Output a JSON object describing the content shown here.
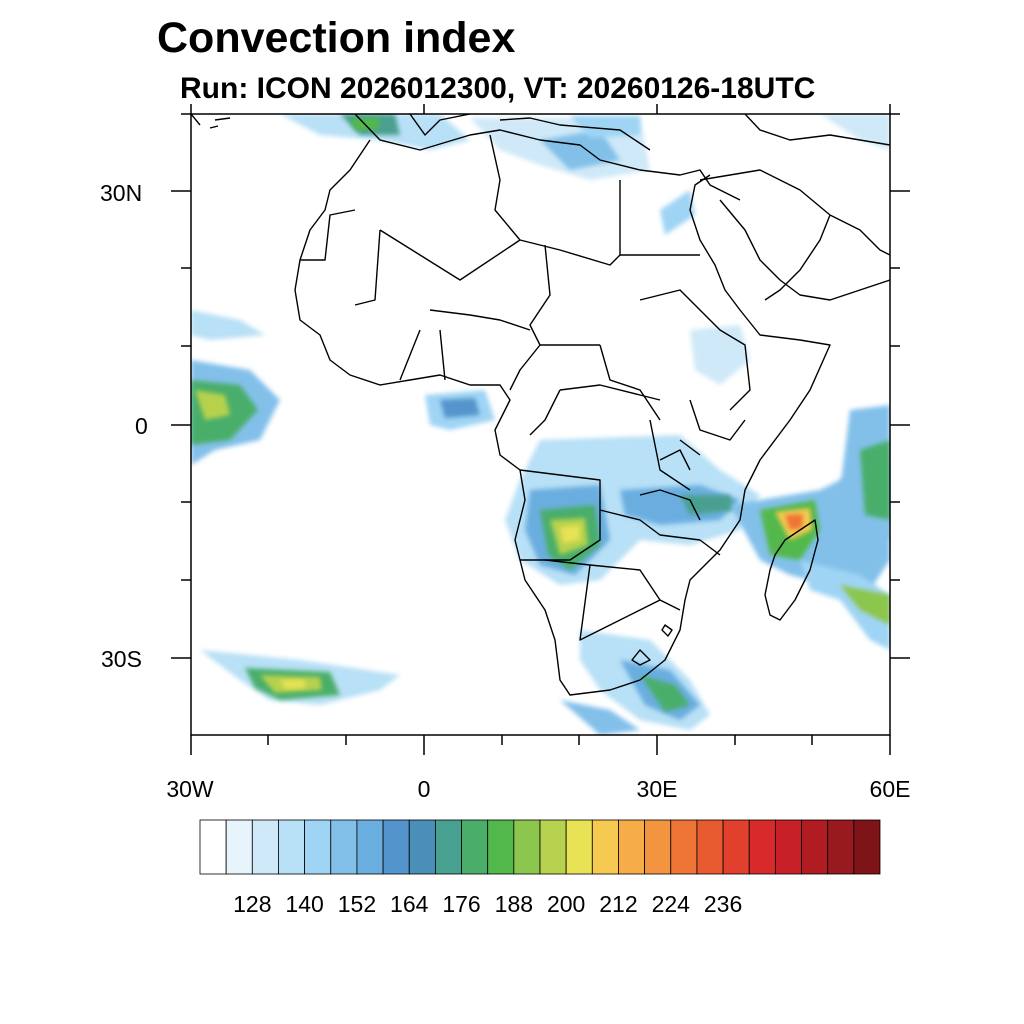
{
  "title": "Convection index",
  "subtitle": "Run: ICON 2026012300,  VT: 20260126-18UTC",
  "axes": {
    "lat_labels": [
      "30N",
      "0",
      "30S"
    ],
    "lon_labels": [
      "30W",
      "0",
      "30E",
      "60E"
    ]
  },
  "map": {
    "extent": {
      "lon_min": -30,
      "lon_max": 60,
      "lat_min": -40,
      "lat_max": 40
    },
    "region": "Africa",
    "variable": "Convection index"
  },
  "colorbar": {
    "tick_labels": [
      "128",
      "140",
      "152",
      "164",
      "176",
      "188",
      "200",
      "212",
      "224",
      "236"
    ],
    "colors": [
      "#ffffff",
      "#e8f4fc",
      "#cfe9f8",
      "#b8e0f6",
      "#9fd4f4",
      "#82c0ea",
      "#6aaee0",
      "#5494cc",
      "#4a8fb8",
      "#48a090",
      "#4aae6a",
      "#52b84c",
      "#8cc64e",
      "#b6d24e",
      "#e8e255",
      "#f6ca50",
      "#f6ad48",
      "#f29440",
      "#ee7536",
      "#e85a30",
      "#e0402c",
      "#d82a2a",
      "#c82028",
      "#b01c22",
      "#981a1e",
      "#7e1418"
    ]
  }
}
